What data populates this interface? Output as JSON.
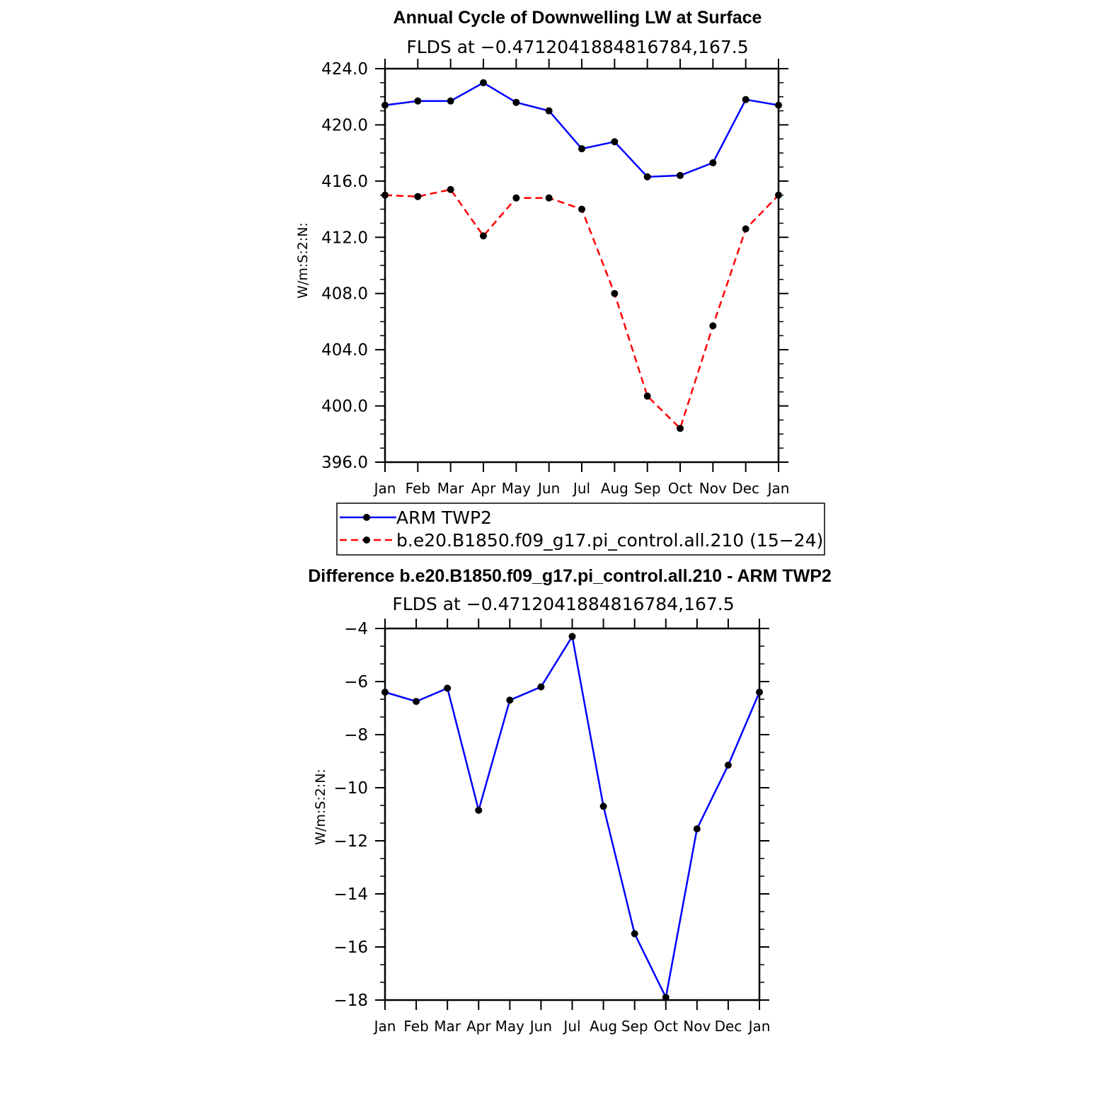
{
  "chart_data": [
    {
      "type": "line",
      "title": "Annual Cycle of Downwelling LW at Surface",
      "subtitle": "FLDS at −0.4712041884816784,167.5",
      "ylabel": "W/m:S:2:N:",
      "xlabel": "",
      "categories": [
        "Jan",
        "Feb",
        "Mar",
        "Apr",
        "May",
        "Jun",
        "Jul",
        "Aug",
        "Sep",
        "Oct",
        "Nov",
        "Dec",
        "Jan"
      ],
      "ylim": [
        396,
        424
      ],
      "yticks": [
        "396.0",
        "400.0",
        "404.0",
        "408.0",
        "412.0",
        "416.0",
        "420.0",
        "424.0"
      ],
      "ytick_values": [
        396,
        400,
        404,
        408,
        412,
        416,
        420,
        424
      ],
      "series": [
        {
          "name": "ARM TWP2",
          "color": "#0000ff",
          "dash": false,
          "values": [
            421.4,
            421.7,
            421.7,
            423.0,
            421.6,
            421.0,
            418.3,
            418.8,
            416.3,
            416.4,
            417.3,
            421.8,
            421.4
          ]
        },
        {
          "name": "b.e20.B1850.f09_g17.pi_control.all.210 (15−24)",
          "color": "#ff0000",
          "dash": true,
          "values": [
            415.0,
            414.9,
            415.4,
            412.1,
            414.8,
            414.8,
            414.0,
            408.0,
            400.7,
            398.4,
            405.7,
            412.6,
            415.0
          ]
        }
      ]
    },
    {
      "type": "line",
      "title": "Difference b.e20.B1850.f09_g17.pi_control.all.210 - ARM TWP2",
      "subtitle": "FLDS at −0.4712041884816784,167.5",
      "ylabel": "W/m:S:2:N:",
      "xlabel": "",
      "categories": [
        "Jan",
        "Feb",
        "Mar",
        "Apr",
        "May",
        "Jun",
        "Jul",
        "Aug",
        "Sep",
        "Oct",
        "Nov",
        "Dec",
        "Jan"
      ],
      "ylim": [
        -18,
        -4
      ],
      "yticks": [
        "−18",
        "−16",
        "−14",
        "−12",
        "−10",
        "−8",
        "−6",
        "−4"
      ],
      "ytick_values": [
        -18,
        -16,
        -14,
        -12,
        -10,
        -8,
        -6,
        -4
      ],
      "series": [
        {
          "name": "Difference",
          "color": "#0000ff",
          "dash": false,
          "values": [
            -6.4,
            -6.75,
            -6.25,
            -10.85,
            -6.7,
            -6.2,
            -4.3,
            -10.7,
            -15.5,
            -17.9,
            -11.55,
            -9.15,
            -6.4
          ]
        }
      ]
    }
  ],
  "legend": {
    "items": [
      {
        "label": "ARM TWP2"
      },
      {
        "label": "b.e20.B1850.f09_g17.pi_control.all.210 (15−24)"
      }
    ]
  }
}
